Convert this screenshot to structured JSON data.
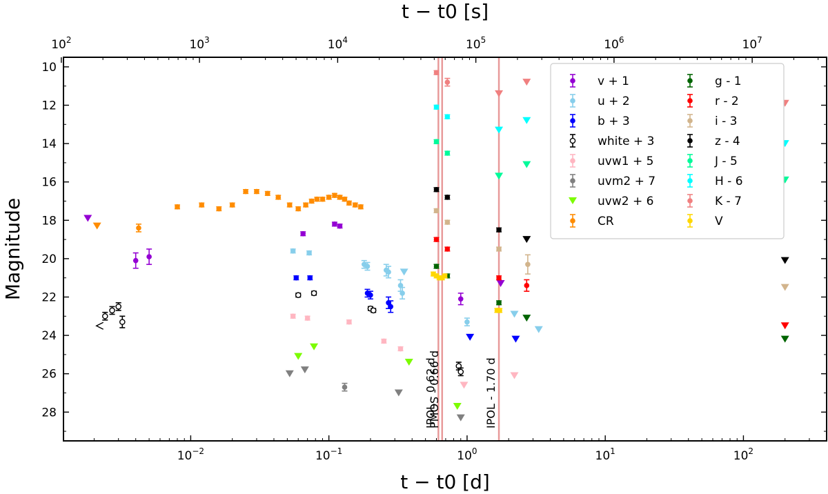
{
  "chart_data": {
    "type": "scatter",
    "title": "",
    "xlabel": "t − t0 [d]",
    "xlabel_top": "t − t0 [s]",
    "ylabel": "Magnitude",
    "xscale": "log",
    "xlim": [
      0.0012,
      400
    ],
    "ylim": [
      29.5,
      9.5
    ],
    "yticks": [
      10,
      12,
      14,
      16,
      18,
      20,
      22,
      24,
      26,
      28
    ],
    "xticks_bottom": [
      {
        "value": 0.01,
        "base": "10",
        "exp": "−2"
      },
      {
        "value": 0.1,
        "base": "10",
        "exp": "−1"
      },
      {
        "value": 1,
        "base": "10",
        "exp": "0"
      },
      {
        "value": 10,
        "base": "10",
        "exp": "1"
      },
      {
        "value": 100,
        "base": "10",
        "exp": "2"
      }
    ],
    "xticks_top": [
      {
        "value_s": 100,
        "base": "10",
        "exp": "2"
      },
      {
        "value_s": 1000,
        "base": "10",
        "exp": "3"
      },
      {
        "value_s": 10000,
        "base": "10",
        "exp": "4"
      },
      {
        "value_s": 100000,
        "base": "10",
        "exp": "5"
      },
      {
        "value_s": 1000000,
        "base": "10",
        "exp": "6"
      },
      {
        "value_s": 10000000,
        "base": "10",
        "exp": "7"
      }
    ],
    "vertical_lines": [
      {
        "x": 0.62,
        "label": "IPOL - 0.62 d"
      },
      {
        "x": 0.66,
        "label": "PMOS - 0.66 d"
      },
      {
        "x": 1.7,
        "label": "IPOL - 1.70 d"
      }
    ],
    "legend_position": "upper-right",
    "series": [
      {
        "name": "v + 1",
        "color": "#9400d3",
        "points": [
          [
            0.004,
            20.1,
            0.4
          ],
          [
            0.005,
            19.9,
            0.4
          ],
          [
            0.065,
            18.7,
            0.1
          ],
          [
            0.11,
            18.2,
            0.1
          ],
          [
            0.12,
            18.3,
            0.1
          ],
          [
            0.9,
            22.1,
            0.3
          ]
        ],
        "limits": [
          [
            0.0018,
            17.9
          ],
          [
            1.75,
            21.3
          ]
        ]
      },
      {
        "name": "u + 2",
        "color": "#87ceeb",
        "points": [
          [
            0.055,
            19.6,
            0.1
          ],
          [
            0.072,
            19.7,
            0.1
          ],
          [
            0.18,
            20.3,
            0.2
          ],
          [
            0.19,
            20.4,
            0.2
          ],
          [
            0.26,
            20.6,
            0.3
          ],
          [
            0.27,
            20.7,
            0.3
          ],
          [
            0.33,
            21.4,
            0.3
          ],
          [
            0.34,
            21.8,
            0.3
          ],
          [
            1.0,
            23.3,
            0.2
          ]
        ],
        "limits": [
          [
            0.35,
            20.7
          ],
          [
            2.2,
            22.9
          ],
          [
            3.3,
            23.7
          ]
        ]
      },
      {
        "name": "b + 3",
        "color": "#0000ff",
        "points": [
          [
            0.058,
            21.0,
            0.1
          ],
          [
            0.073,
            21.0,
            0.1
          ],
          [
            0.19,
            21.8,
            0.2
          ],
          [
            0.2,
            21.9,
            0.2
          ],
          [
            0.27,
            22.3,
            0.3
          ],
          [
            0.28,
            22.5,
            0.3
          ]
        ],
        "limits": [
          [
            1.05,
            24.1
          ],
          [
            2.25,
            24.2
          ]
        ]
      },
      {
        "name": "white + 3",
        "color": "#000000",
        "open": true,
        "points": [
          [
            0.0024,
            23.0,
            0.2
          ],
          [
            0.0027,
            22.7,
            0.2
          ],
          [
            0.003,
            22.5,
            0.2
          ],
          [
            0.0032,
            23.3,
            0.3
          ],
          [
            0.06,
            21.9,
            0.1
          ],
          [
            0.078,
            21.8,
            0.1
          ],
          [
            0.2,
            22.6,
            0.1
          ],
          [
            0.21,
            22.7,
            0.1
          ],
          [
            0.87,
            25.6,
            0.2
          ],
          [
            0.9,
            25.9,
            0.2
          ]
        ],
        "limits": [
          [
            0.0022,
            23.5
          ]
        ]
      },
      {
        "name": "uvw1 + 5",
        "color": "#ffb6c1",
        "points": [
          [
            0.055,
            23.0,
            0.1
          ],
          [
            0.07,
            23.1,
            0.1
          ],
          [
            0.14,
            23.3,
            0.1
          ],
          [
            0.25,
            24.3,
            0.1
          ],
          [
            0.33,
            24.7,
            0.1
          ]
        ],
        "limits": [
          [
            0.95,
            26.6
          ],
          [
            2.2,
            26.1
          ]
        ]
      },
      {
        "name": "uvm2 + 7",
        "color": "#808080",
        "points": [
          [
            0.13,
            26.7,
            0.2
          ]
        ],
        "limits": [
          [
            0.052,
            26.0
          ],
          [
            0.067,
            25.8
          ],
          [
            0.32,
            27.0
          ],
          [
            0.9,
            28.3
          ]
        ]
      },
      {
        "name": "uvw2 + 6",
        "color": "#7cfc00",
        "points": [],
        "limits": [
          [
            0.06,
            25.1
          ],
          [
            0.078,
            24.6
          ],
          [
            0.38,
            25.4
          ],
          [
            0.85,
            27.7
          ]
        ]
      },
      {
        "name": "CR",
        "color": "#ff8c00",
        "points": [
          [
            0.0042,
            18.4,
            0.2
          ],
          [
            0.008,
            17.3,
            0.1
          ],
          [
            0.012,
            17.2,
            0.1
          ],
          [
            0.016,
            17.4,
            0.1
          ],
          [
            0.02,
            17.2,
            0.1
          ],
          [
            0.025,
            16.5,
            0.1
          ],
          [
            0.03,
            16.5,
            0.1
          ],
          [
            0.036,
            16.6,
            0.1
          ],
          [
            0.043,
            16.8,
            0.1
          ],
          [
            0.052,
            17.2,
            0.1
          ],
          [
            0.06,
            17.4,
            0.1
          ],
          [
            0.068,
            17.2,
            0.1
          ],
          [
            0.075,
            17.0,
            0.1
          ],
          [
            0.082,
            16.9,
            0.1
          ],
          [
            0.09,
            16.9,
            0.1
          ],
          [
            0.1,
            16.8,
            0.1
          ],
          [
            0.11,
            16.7,
            0.1
          ],
          [
            0.12,
            16.8,
            0.1
          ],
          [
            0.13,
            16.9,
            0.1
          ],
          [
            0.14,
            17.1,
            0.1
          ],
          [
            0.155,
            17.2,
            0.1
          ],
          [
            0.17,
            17.3,
            0.1
          ]
        ],
        "limits": [
          [
            0.0021,
            18.3
          ]
        ]
      },
      {
        "name": "g - 1",
        "color": "#006400",
        "points": [
          [
            0.6,
            20.4,
            0.1
          ],
          [
            0.72,
            20.9,
            0.1
          ],
          [
            1.7,
            22.3,
            0.1
          ]
        ],
        "limits": [
          [
            2.7,
            23.1
          ],
          [
            200,
            24.2
          ]
        ]
      },
      {
        "name": "r - 2",
        "color": "#ff0000",
        "points": [
          [
            0.6,
            19.0,
            0.1
          ],
          [
            0.72,
            19.5,
            0.1
          ],
          [
            1.7,
            21.0,
            0.1
          ],
          [
            2.7,
            21.4,
            0.3
          ]
        ],
        "limits": [
          [
            200,
            23.5
          ]
        ]
      },
      {
        "name": "i - 3",
        "color": "#d2b48c",
        "points": [
          [
            0.6,
            17.5,
            0.1
          ],
          [
            0.72,
            18.1,
            0.1
          ],
          [
            1.7,
            19.5,
            0.1
          ],
          [
            2.75,
            20.3,
            0.5
          ]
        ],
        "limits": [
          [
            200,
            21.5
          ]
        ]
      },
      {
        "name": "z - 4",
        "color": "#000000",
        "points": [
          [
            0.6,
            16.4,
            0.1
          ],
          [
            0.72,
            16.8,
            0.1
          ],
          [
            1.7,
            18.5,
            0.1
          ]
        ],
        "limits": [
          [
            2.7,
            19.0
          ],
          [
            200,
            20.1
          ]
        ]
      },
      {
        "name": "J - 5",
        "color": "#00fa9a",
        "points": [
          [
            0.6,
            13.9,
            0.1
          ],
          [
            0.72,
            14.5,
            0.1
          ]
        ],
        "limits": [
          [
            1.7,
            15.7
          ],
          [
            2.7,
            15.1
          ],
          [
            200,
            15.9
          ]
        ]
      },
      {
        "name": "H - 6",
        "color": "#00ffff",
        "points": [
          [
            0.6,
            12.1,
            0.1
          ],
          [
            0.72,
            12.6,
            0.1
          ]
        ],
        "limits": [
          [
            1.7,
            13.3
          ],
          [
            2.7,
            12.8
          ],
          [
            200,
            14.0
          ]
        ]
      },
      {
        "name": "K - 7",
        "color": "#f08080",
        "points": [
          [
            0.6,
            10.3,
            0.1
          ],
          [
            0.72,
            10.8,
            0.2
          ]
        ],
        "limits": [
          [
            1.7,
            11.4
          ],
          [
            2.7,
            10.8
          ],
          [
            200,
            11.9
          ]
        ]
      },
      {
        "name": "V",
        "color": "#ffd700",
        "points": [
          [
            0.57,
            20.8,
            0.1
          ],
          [
            0.6,
            20.9,
            0.1
          ],
          [
            0.63,
            21.0,
            0.1
          ],
          [
            0.66,
            21.0,
            0.1
          ],
          [
            0.69,
            20.9,
            0.1
          ],
          [
            1.65,
            22.7,
            0.1
          ],
          [
            1.72,
            22.7,
            0.1
          ]
        ],
        "limits": []
      }
    ]
  }
}
